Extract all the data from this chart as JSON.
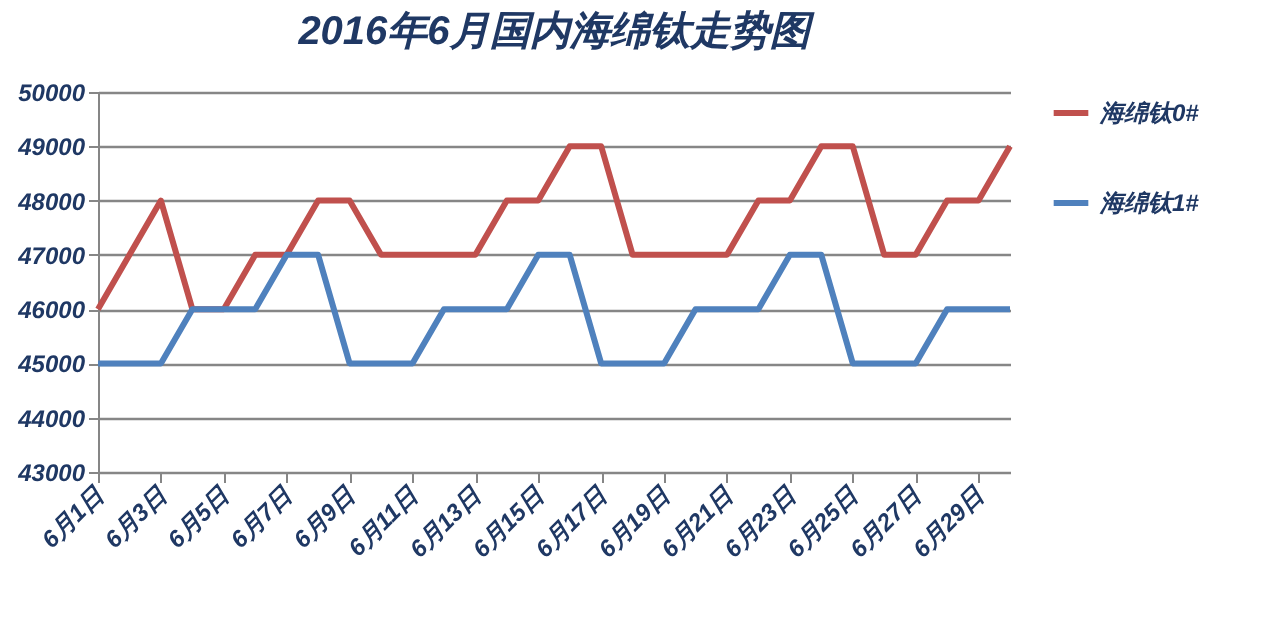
{
  "chart_data": {
    "type": "line",
    "title": "2016年6月国内海绵钛走势图",
    "xlim": [
      "--06-01",
      "--06-30"
    ],
    "xticks": [
      {
        "value": "--06-01",
        "label": "6月1日"
      },
      {
        "value": "--06-03",
        "label": "6月3日"
      },
      {
        "value": "--06-05",
        "label": "6月5日"
      },
      {
        "value": "--06-07",
        "label": "6月7日"
      },
      {
        "value": "--06-09",
        "label": "6月9日"
      },
      {
        "value": "--06-11",
        "label": "6月11日"
      },
      {
        "value": "--06-13",
        "label": "6月13日"
      },
      {
        "value": "--06-15",
        "label": "6月15日"
      },
      {
        "value": "--06-17",
        "label": "6月17日"
      },
      {
        "value": "--06-19",
        "label": "6月19日"
      },
      {
        "value": "--06-21",
        "label": "6月21日"
      },
      {
        "value": "--06-23",
        "label": "6月23日"
      },
      {
        "value": "--06-25",
        "label": "6月25日"
      },
      {
        "value": "--06-27",
        "label": "6月27日"
      },
      {
        "value": "--06-29",
        "label": "6月29日"
      }
    ],
    "ylim": [
      43000,
      50000
    ],
    "yticks": [
      43000,
      44000,
      45000,
      46000,
      47000,
      48000,
      49000,
      50000
    ],
    "grid": "y",
    "legend": "right",
    "marker": "none",
    "line_style": "solid",
    "series": [
      {
        "name": "海绵钛0#",
        "color": "#c0504d",
        "x": [
          "--06-01",
          "--06-03",
          "--06-04",
          "--06-05",
          "--06-06",
          "--06-07",
          "--06-08",
          "--06-09",
          "--06-10",
          "--06-13",
          "--06-14",
          "--06-15",
          "--06-16",
          "--06-17",
          "--06-18",
          "--06-21",
          "--06-22",
          "--06-23",
          "--06-24",
          "--06-25",
          "--06-26",
          "--06-27",
          "--06-28",
          "--06-29",
          "--06-30"
        ],
        "values": [
          46000,
          48000,
          46000,
          46000,
          47000,
          47000,
          48000,
          48000,
          47000,
          47000,
          48000,
          48000,
          49000,
          49000,
          47000,
          47000,
          48000,
          48000,
          49000,
          49000,
          47000,
          47000,
          48000,
          48000,
          49000
        ]
      },
      {
        "name": "海绵钛1#",
        "color": "#4f81bd",
        "x": [
          "--06-01",
          "--06-03",
          "--06-04",
          "--06-06",
          "--06-07",
          "--06-08",
          "--06-09",
          "--06-11",
          "--06-12",
          "--06-14",
          "--06-15",
          "--06-16",
          "--06-17",
          "--06-19",
          "--06-20",
          "--06-22",
          "--06-23",
          "--06-24",
          "--06-25",
          "--06-27",
          "--06-28",
          "--06-30"
        ],
        "values": [
          45000,
          45000,
          46000,
          46000,
          47000,
          47000,
          45000,
          45000,
          46000,
          46000,
          47000,
          47000,
          45000,
          45000,
          46000,
          46000,
          47000,
          47000,
          45000,
          45000,
          46000,
          46000
        ]
      }
    ]
  }
}
